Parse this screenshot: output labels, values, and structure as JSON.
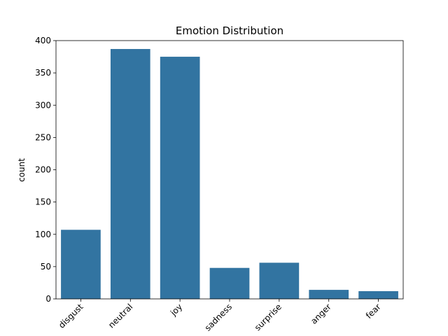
{
  "chart_data": {
    "type": "bar",
    "title": "Emotion Distribution",
    "xlabel": "",
    "ylabel": "count",
    "categories": [
      "disgust",
      "neutral",
      "joy",
      "sadness",
      "surprise",
      "anger",
      "fear"
    ],
    "values": [
      107,
      387,
      375,
      48,
      56,
      14,
      12
    ],
    "ylim": [
      0,
      400
    ],
    "yticks": [
      0,
      50,
      100,
      150,
      200,
      250,
      300,
      350,
      400
    ],
    "x_tick_rotation_deg": 45,
    "grid": false,
    "legend": "none",
    "colors": {
      "bar": "#3274a1",
      "axis": "#000000",
      "background": "#ffffff"
    }
  }
}
